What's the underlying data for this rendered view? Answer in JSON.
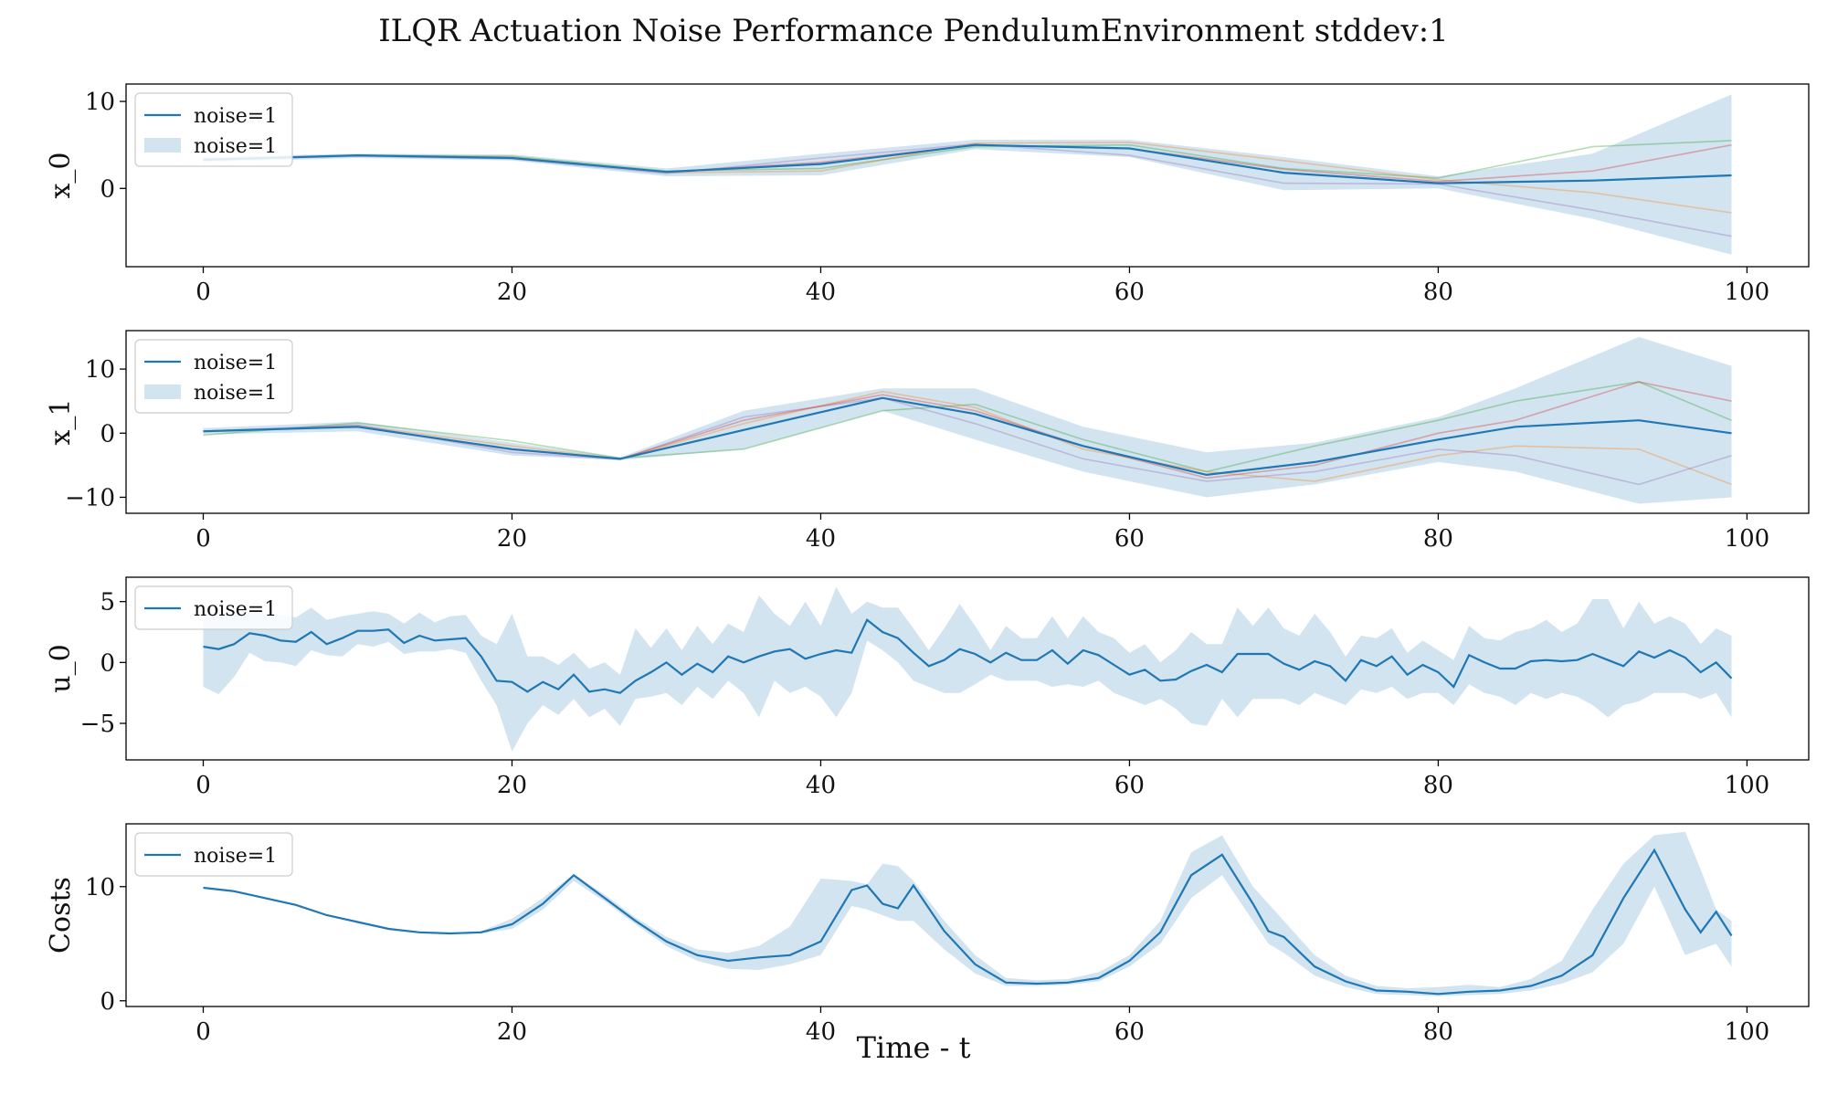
{
  "figure": {
    "title": "ILQR Actuation Noise Performance PendulumEnvironment stddev:1",
    "xlabel": "Time - t"
  },
  "colors": {
    "mean_line": "#1f77b4",
    "band": "#1f77b4",
    "band_alpha": 0.2,
    "traces": [
      "#2ca02c",
      "#ff7f0e",
      "#9467bd",
      "#d62728"
    ]
  },
  "chart_data": [
    {
      "type": "line",
      "ylabel": "x_0",
      "xlim": [
        -5,
        104
      ],
      "ylim": [
        -9,
        12
      ],
      "xticks": [
        0,
        20,
        40,
        60,
        80,
        100
      ],
      "yticks": [
        0,
        10
      ],
      "legend": {
        "position": "top-left",
        "entries": [
          "noise=1",
          "noise=1"
        ]
      },
      "x": [
        0,
        10,
        20,
        30,
        40,
        50,
        60,
        70,
        80,
        90,
        99
      ],
      "mean": [
        3.3,
        3.8,
        3.5,
        1.9,
        2.8,
        5.0,
        4.6,
        1.8,
        0.6,
        0.9,
        1.5
      ],
      "band_upper": [
        3.6,
        4.0,
        3.9,
        2.3,
        4.0,
        5.6,
        5.6,
        3.6,
        1.4,
        4.0,
        10.8
      ],
      "band_lower": [
        3.0,
        3.5,
        3.2,
        1.4,
        1.5,
        4.5,
        3.6,
        -0.2,
        0.0,
        -3.5,
        -7.6
      ],
      "traces": [
        [
          3.3,
          3.8,
          3.7,
          2.0,
          2.3,
          4.8,
          5.0,
          2.3,
          1.2,
          4.8,
          5.5
        ],
        [
          3.2,
          3.8,
          3.6,
          1.8,
          2.0,
          5.2,
          5.3,
          3.2,
          1.0,
          -0.5,
          -2.8
        ],
        [
          3.3,
          3.7,
          3.4,
          1.7,
          3.5,
          5.1,
          3.8,
          0.6,
          0.5,
          -2.5,
          -5.5
        ],
        [
          3.3,
          3.8,
          3.5,
          1.9,
          3.0,
          5.0,
          4.6,
          2.2,
          0.8,
          2.0,
          5.0
        ]
      ]
    },
    {
      "type": "line",
      "ylabel": "x_1",
      "xlim": [
        -5,
        104
      ],
      "ylim": [
        -12.5,
        16
      ],
      "xticks": [
        0,
        20,
        40,
        60,
        80,
        100
      ],
      "yticks": [
        -10,
        0,
        10
      ],
      "legend": {
        "position": "top-left",
        "entries": [
          "noise=1",
          "noise=1"
        ]
      },
      "x": [
        0,
        10,
        20,
        27,
        35,
        44,
        50,
        57,
        65,
        72,
        80,
        85,
        93,
        99
      ],
      "mean": [
        0.3,
        1.0,
        -2.5,
        -4.0,
        0.5,
        5.5,
        3.0,
        -2.0,
        -6.5,
        -4.5,
        -1.0,
        1.0,
        2.0,
        0.0
      ],
      "band_upper": [
        0.8,
        1.8,
        -1.5,
        -3.8,
        3.5,
        7.0,
        7.0,
        1.0,
        -3.0,
        -1.5,
        2.5,
        7.0,
        15.0,
        10.5
      ],
      "band_lower": [
        -0.2,
        0.3,
        -3.5,
        -4.2,
        -2.5,
        3.5,
        -1.0,
        -6.0,
        -10.0,
        -8.0,
        -4.5,
        -6.0,
        -11.0,
        -10.0
      ],
      "traces": [
        [
          -0.3,
          1.6,
          -1.2,
          -3.9,
          -2.5,
          3.5,
          4.5,
          -1.0,
          -6.0,
          -2.0,
          2.0,
          5.0,
          8.0,
          2.0
        ],
        [
          0.2,
          1.2,
          -2.0,
          -4.0,
          1.5,
          6.5,
          4.0,
          -2.5,
          -6.0,
          -7.5,
          -3.5,
          -2.0,
          -2.5,
          -8.0
        ],
        [
          0.3,
          1.3,
          -3.0,
          -4.1,
          2.5,
          5.5,
          1.5,
          -4.0,
          -7.5,
          -6.0,
          -2.5,
          -3.5,
          -8.0,
          -3.5
        ],
        [
          0.3,
          1.0,
          -2.6,
          -4.0,
          2.0,
          6.0,
          3.5,
          -2.0,
          -7.0,
          -5.0,
          0.0,
          2.0,
          8.0,
          5.0
        ]
      ]
    },
    {
      "type": "line",
      "ylabel": "u_0",
      "xlim": [
        -5,
        104
      ],
      "ylim": [
        -8,
        7
      ],
      "xticks": [
        0,
        20,
        40,
        60,
        80,
        100
      ],
      "yticks": [
        -5,
        0,
        5
      ],
      "legend": {
        "position": "top-left",
        "entries": [
          "noise=1"
        ]
      },
      "x": [
        0,
        1,
        2,
        3,
        4,
        5,
        6,
        7,
        8,
        9,
        10,
        11,
        12,
        13,
        14,
        15,
        16,
        17,
        18,
        19,
        20,
        21,
        22,
        23,
        24,
        25,
        26,
        27,
        28,
        29,
        30,
        31,
        32,
        33,
        34,
        35,
        36,
        37,
        38,
        39,
        40,
        41,
        42,
        43,
        44,
        45,
        46,
        47,
        48,
        49,
        50,
        51,
        52,
        53,
        54,
        55,
        56,
        57,
        58,
        59,
        60,
        61,
        62,
        63,
        64,
        65,
        66,
        67,
        68,
        69,
        70,
        71,
        72,
        73,
        74,
        75,
        76,
        77,
        78,
        79,
        80,
        81,
        82,
        83,
        84,
        85,
        86,
        87,
        88,
        89,
        90,
        91,
        92,
        93,
        94,
        95,
        96,
        97,
        98,
        99
      ],
      "mean": [
        1.3,
        1.1,
        1.5,
        2.4,
        2.2,
        1.8,
        1.7,
        2.5,
        1.5,
        2.0,
        2.6,
        2.6,
        2.7,
        1.6,
        2.2,
        1.8,
        1.9,
        2.0,
        0.5,
        -1.5,
        -1.6,
        -2.4,
        -1.6,
        -2.2,
        -1.0,
        -2.4,
        -2.2,
        -2.5,
        -1.5,
        -0.8,
        0.0,
        -1.0,
        -0.1,
        -0.8,
        0.5,
        0.0,
        0.5,
        0.9,
        1.1,
        0.3,
        0.7,
        1.0,
        0.8,
        3.5,
        2.5,
        2.0,
        0.8,
        -0.3,
        0.2,
        1.1,
        0.7,
        0.0,
        0.8,
        0.2,
        0.2,
        1.0,
        -0.1,
        1.0,
        0.6,
        -0.2,
        -1.0,
        -0.6,
        -1.5,
        -1.4,
        -0.7,
        -0.2,
        -0.8,
        0.7,
        0.7,
        0.7,
        -0.1,
        -0.6,
        0.1,
        -0.3,
        -1.5,
        0.2,
        -0.3,
        0.5,
        -1.0,
        -0.2,
        -0.8,
        -2.0,
        0.6,
        0.0,
        -0.5,
        -0.5,
        0.1,
        0.2,
        0.1,
        0.2,
        0.7,
        0.2,
        -0.3,
        0.9,
        0.4,
        1.0,
        0.4,
        -0.8,
        0.0,
        -1.3
      ],
      "band_upper": [
        4.0,
        4.2,
        3.8,
        4.5,
        3.9,
        3.9,
        3.7,
        4.5,
        3.5,
        3.8,
        4.0,
        4.2,
        4.0,
        3.2,
        4.1,
        3.3,
        3.8,
        3.9,
        2.2,
        1.5,
        4.0,
        0.5,
        0.5,
        -0.2,
        0.8,
        -0.5,
        0.0,
        -1.0,
        2.8,
        1.2,
        2.8,
        1.0,
        3.0,
        1.5,
        3.2,
        2.5,
        5.5,
        4.0,
        3.0,
        5.0,
        3.0,
        6.2,
        4.0,
        5.0,
        4.5,
        4.5,
        2.8,
        1.0,
        2.8,
        4.8,
        3.0,
        1.0,
        3.0,
        2.0,
        2.0,
        3.8,
        2.0,
        3.8,
        2.5,
        2.0,
        0.8,
        1.5,
        0.0,
        1.0,
        2.5,
        1.5,
        1.5,
        4.5,
        3.0,
        4.5,
        2.8,
        2.2,
        4.0,
        2.5,
        0.5,
        2.2,
        2.0,
        2.8,
        0.8,
        1.8,
        1.0,
        0.2,
        3.0,
        2.0,
        1.8,
        2.5,
        2.8,
        3.5,
        2.5,
        3.2,
        5.2,
        5.2,
        2.8,
        5.0,
        3.2,
        3.8,
        3.2,
        1.5,
        2.8,
        2.2
      ],
      "band_lower": [
        -2.0,
        -2.6,
        -1.2,
        0.8,
        0.1,
        0.0,
        -0.3,
        1.0,
        0.6,
        0.5,
        1.5,
        1.3,
        1.7,
        0.7,
        0.9,
        0.9,
        1.1,
        0.8,
        -1.5,
        -3.5,
        -7.3,
        -5.0,
        -3.5,
        -4.3,
        -3.0,
        -4.5,
        -3.8,
        -5.2,
        -3.0,
        -2.8,
        -2.5,
        -3.5,
        -2.0,
        -3.0,
        -1.5,
        -2.5,
        -4.5,
        -1.5,
        -2.5,
        -2.0,
        -2.8,
        -4.5,
        -2.5,
        1.8,
        1.0,
        0.0,
        -1.5,
        -2.0,
        -2.5,
        -2.5,
        -1.8,
        -1.0,
        -1.5,
        -1.5,
        -1.5,
        -2.0,
        -1.8,
        -2.0,
        -1.5,
        -2.5,
        -3.0,
        -3.5,
        -3.0,
        -3.8,
        -5.0,
        -5.2,
        -3.0,
        -4.5,
        -3.0,
        -3.0,
        -3.0,
        -3.5,
        -2.5,
        -3.0,
        -3.5,
        -2.2,
        -2.5,
        -2.0,
        -3.0,
        -2.5,
        -2.5,
        -3.5,
        -1.8,
        -2.5,
        -2.8,
        -3.5,
        -2.5,
        -3.0,
        -2.5,
        -2.8,
        -3.5,
        -4.5,
        -3.5,
        -3.2,
        -2.5,
        -2.5,
        -2.5,
        -3.0,
        -2.5,
        -4.5
      ]
    },
    {
      "type": "line",
      "ylabel": "Costs",
      "xlim": [
        -5,
        104
      ],
      "ylim": [
        -0.5,
        15.5
      ],
      "xticks": [
        0,
        20,
        40,
        60,
        80,
        100
      ],
      "yticks": [
        0,
        10
      ],
      "legend": {
        "position": "top-left",
        "entries": [
          "noise=1"
        ]
      },
      "x": [
        0,
        2,
        4,
        6,
        8,
        10,
        12,
        14,
        16,
        18,
        20,
        22,
        24,
        26,
        28,
        30,
        32,
        34,
        36,
        38,
        40,
        42,
        43,
        44,
        45,
        46,
        48,
        50,
        52,
        54,
        56,
        58,
        60,
        62,
        64,
        66,
        68,
        69,
        70,
        72,
        74,
        76,
        78,
        80,
        82,
        84,
        86,
        88,
        90,
        92,
        94,
        96,
        97,
        98,
        99
      ],
      "mean": [
        9.9,
        9.6,
        9.0,
        8.4,
        7.5,
        6.9,
        6.3,
        6.0,
        5.9,
        6.0,
        6.7,
        8.5,
        11.0,
        9.0,
        7.0,
        5.2,
        4.0,
        3.5,
        3.8,
        4.0,
        5.2,
        9.7,
        10.1,
        8.5,
        8.1,
        10.1,
        6.1,
        3.2,
        1.6,
        1.5,
        1.6,
        2.0,
        3.5,
        6.0,
        11.0,
        12.8,
        8.5,
        6.1,
        5.6,
        3.0,
        1.7,
        0.9,
        0.8,
        0.6,
        0.8,
        0.9,
        1.3,
        2.2,
        4.0,
        9.0,
        13.2,
        8.0,
        6.0,
        7.8,
        5.7
      ],
      "band_upper": [
        9.9,
        9.6,
        9.0,
        8.4,
        7.5,
        6.9,
        6.3,
        6.0,
        5.9,
        6.1,
        7.2,
        9.0,
        11.1,
        9.3,
        7.3,
        5.6,
        4.5,
        4.2,
        4.8,
        6.5,
        10.7,
        10.5,
        10.2,
        12.0,
        11.8,
        10.5,
        7.0,
        4.0,
        2.0,
        1.8,
        1.9,
        2.5,
        4.0,
        7.0,
        13.0,
        14.5,
        10.0,
        8.5,
        7.0,
        4.0,
        2.2,
        1.3,
        1.1,
        1.2,
        1.4,
        1.2,
        1.9,
        3.5,
        8.0,
        12.0,
        14.5,
        14.8,
        11.5,
        8.0,
        7.0
      ],
      "band_lower": [
        9.9,
        9.6,
        9.0,
        8.4,
        7.5,
        6.9,
        6.3,
        6.0,
        5.9,
        5.9,
        6.3,
        8.0,
        10.5,
        8.7,
        6.7,
        4.8,
        3.5,
        2.8,
        2.7,
        3.2,
        4.0,
        8.3,
        8.0,
        7.5,
        7.0,
        7.0,
        4.5,
        2.4,
        1.3,
        1.3,
        1.4,
        1.7,
        3.0,
        5.0,
        9.0,
        11.0,
        7.0,
        5.0,
        4.2,
        2.2,
        1.2,
        0.6,
        0.5,
        0.4,
        0.5,
        0.6,
        0.9,
        1.5,
        2.5,
        5.0,
        10.0,
        4.0,
        4.5,
        5.0,
        3.0
      ]
    }
  ]
}
